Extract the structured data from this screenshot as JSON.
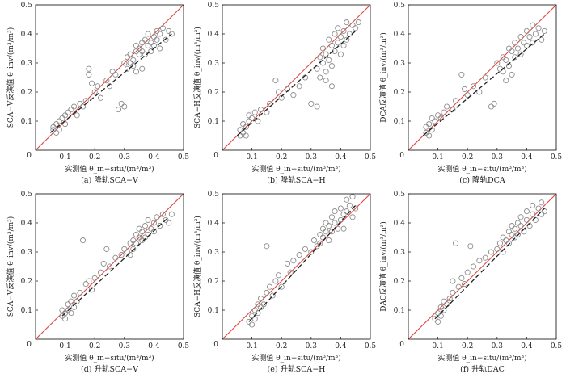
{
  "chart_data": [
    {
      "type": "scatter",
      "caption": "(a) 降轨SCA−V",
      "xlabel": "实测值 θ_in−situ/(m³/m³)",
      "ylabel": "SCA−V反演值 θ_inv/(m³/m³)",
      "xlim": [
        0,
        0.5
      ],
      "ylim": [
        0,
        0.5
      ],
      "ticks": [
        0.1,
        0.2,
        0.3,
        0.4,
        0.5
      ],
      "tick_labels": [
        "0.1",
        "0.2",
        "0.3",
        "0.4",
        "0.5"
      ],
      "origin_label": "0",
      "one_to_one": true,
      "fit": {
        "x": [
          0.05,
          0.46
        ],
        "y": [
          0.06,
          0.4
        ]
      },
      "points": [
        [
          0.06,
          0.07
        ],
        [
          0.06,
          0.08
        ],
        [
          0.07,
          0.06
        ],
        [
          0.07,
          0.09
        ],
        [
          0.08,
          0.07
        ],
        [
          0.08,
          0.1
        ],
        [
          0.09,
          0.11
        ],
        [
          0.1,
          0.12
        ],
        [
          0.1,
          0.09
        ],
        [
          0.11,
          0.13
        ],
        [
          0.12,
          0.14
        ],
        [
          0.13,
          0.15
        ],
        [
          0.14,
          0.12
        ],
        [
          0.15,
          0.16
        ],
        [
          0.16,
          0.15
        ],
        [
          0.17,
          0.17
        ],
        [
          0.18,
          0.28
        ],
        [
          0.18,
          0.26
        ],
        [
          0.19,
          0.23
        ],
        [
          0.2,
          0.2
        ],
        [
          0.21,
          0.22
        ],
        [
          0.22,
          0.18
        ],
        [
          0.24,
          0.24
        ],
        [
          0.25,
          0.22
        ],
        [
          0.26,
          0.27
        ],
        [
          0.27,
          0.26
        ],
        [
          0.28,
          0.14
        ],
        [
          0.29,
          0.16
        ],
        [
          0.3,
          0.15
        ],
        [
          0.3,
          0.3
        ],
        [
          0.31,
          0.28
        ],
        [
          0.31,
          0.32
        ],
        [
          0.32,
          0.3
        ],
        [
          0.32,
          0.33
        ],
        [
          0.33,
          0.31
        ],
        [
          0.33,
          0.29
        ],
        [
          0.34,
          0.34
        ],
        [
          0.34,
          0.36
        ],
        [
          0.35,
          0.33
        ],
        [
          0.35,
          0.35
        ],
        [
          0.36,
          0.37
        ],
        [
          0.36,
          0.34
        ],
        [
          0.37,
          0.38
        ],
        [
          0.37,
          0.33
        ],
        [
          0.38,
          0.36
        ],
        [
          0.38,
          0.4
        ],
        [
          0.39,
          0.37
        ],
        [
          0.39,
          0.34
        ],
        [
          0.4,
          0.39
        ],
        [
          0.4,
          0.36
        ],
        [
          0.41,
          0.41
        ],
        [
          0.41,
          0.38
        ],
        [
          0.42,
          0.4
        ],
        [
          0.42,
          0.35
        ],
        [
          0.43,
          0.42
        ],
        [
          0.44,
          0.38
        ],
        [
          0.45,
          0.41
        ],
        [
          0.46,
          0.4
        ],
        [
          0.36,
          0.28
        ],
        [
          0.34,
          0.27
        ]
      ]
    },
    {
      "type": "scatter",
      "caption": "(b) 降轨SCA−H",
      "xlabel": "实测值 θ_in−situ/(m³/m³)",
      "ylabel": "SCA−H反演值 θ_inv/(m³/m³)",
      "xlim": [
        0,
        0.5
      ],
      "ylim": [
        0,
        0.5
      ],
      "ticks": [
        0.1,
        0.2,
        0.3,
        0.4,
        0.5
      ],
      "tick_labels": [
        "0.1",
        "0.2",
        "0.3",
        "0.4",
        "0.5"
      ],
      "origin_label": "0",
      "one_to_one": true,
      "fit": {
        "x": [
          0.05,
          0.45
        ],
        "y": [
          0.05,
          0.41
        ]
      },
      "points": [
        [
          0.06,
          0.05
        ],
        [
          0.06,
          0.07
        ],
        [
          0.07,
          0.06
        ],
        [
          0.07,
          0.09
        ],
        [
          0.08,
          0.05
        ],
        [
          0.08,
          0.08
        ],
        [
          0.09,
          0.1
        ],
        [
          0.09,
          0.12
        ],
        [
          0.1,
          0.11
        ],
        [
          0.11,
          0.13
        ],
        [
          0.12,
          0.1
        ],
        [
          0.13,
          0.14
        ],
        [
          0.15,
          0.13
        ],
        [
          0.16,
          0.16
        ],
        [
          0.18,
          0.24
        ],
        [
          0.19,
          0.2
        ],
        [
          0.2,
          0.18
        ],
        [
          0.22,
          0.21
        ],
        [
          0.24,
          0.19
        ],
        [
          0.26,
          0.22
        ],
        [
          0.28,
          0.25
        ],
        [
          0.3,
          0.16
        ],
        [
          0.32,
          0.15
        ],
        [
          0.32,
          0.28
        ],
        [
          0.33,
          0.32
        ],
        [
          0.33,
          0.25
        ],
        [
          0.34,
          0.35
        ],
        [
          0.34,
          0.3
        ],
        [
          0.35,
          0.33
        ],
        [
          0.35,
          0.27
        ],
        [
          0.36,
          0.38
        ],
        [
          0.36,
          0.31
        ],
        [
          0.37,
          0.36
        ],
        [
          0.37,
          0.29
        ],
        [
          0.38,
          0.4
        ],
        [
          0.38,
          0.34
        ],
        [
          0.39,
          0.37
        ],
        [
          0.39,
          0.42
        ],
        [
          0.4,
          0.39
        ],
        [
          0.4,
          0.33
        ],
        [
          0.41,
          0.41
        ],
        [
          0.41,
          0.36
        ],
        [
          0.42,
          0.44
        ],
        [
          0.42,
          0.38
        ],
        [
          0.43,
          0.4
        ],
        [
          0.44,
          0.43
        ],
        [
          0.45,
          0.42
        ],
        [
          0.46,
          0.44
        ],
        [
          0.37,
          0.22
        ],
        [
          0.35,
          0.24
        ]
      ]
    },
    {
      "type": "scatter",
      "caption": "(c) 降轨DCA",
      "xlabel": "实测值 θ_in−situ/(m³/m³)",
      "ylabel": "DCA反演值 θ_inv/(m³/m³)",
      "xlim": [
        0,
        0.5
      ],
      "ylim": [
        0,
        0.5
      ],
      "ticks": [
        0.1,
        0.2,
        0.3,
        0.4,
        0.5
      ],
      "tick_labels": [
        "0.1",
        "0.2",
        "0.3",
        "0.4",
        "0.5"
      ],
      "origin_label": "0",
      "one_to_one": true,
      "fit": {
        "x": [
          0.05,
          0.46
        ],
        "y": [
          0.05,
          0.4
        ]
      },
      "points": [
        [
          0.06,
          0.06
        ],
        [
          0.06,
          0.08
        ],
        [
          0.07,
          0.05
        ],
        [
          0.07,
          0.09
        ],
        [
          0.08,
          0.07
        ],
        [
          0.08,
          0.11
        ],
        [
          0.09,
          0.1
        ],
        [
          0.1,
          0.12
        ],
        [
          0.11,
          0.11
        ],
        [
          0.12,
          0.13
        ],
        [
          0.13,
          0.15
        ],
        [
          0.15,
          0.14
        ],
        [
          0.16,
          0.17
        ],
        [
          0.18,
          0.26
        ],
        [
          0.19,
          0.21
        ],
        [
          0.2,
          0.19
        ],
        [
          0.22,
          0.22
        ],
        [
          0.24,
          0.2
        ],
        [
          0.26,
          0.25
        ],
        [
          0.28,
          0.15
        ],
        [
          0.29,
          0.16
        ],
        [
          0.3,
          0.3
        ],
        [
          0.31,
          0.28
        ],
        [
          0.32,
          0.32
        ],
        [
          0.32,
          0.27
        ],
        [
          0.33,
          0.31
        ],
        [
          0.34,
          0.35
        ],
        [
          0.34,
          0.29
        ],
        [
          0.35,
          0.34
        ],
        [
          0.36,
          0.37
        ],
        [
          0.36,
          0.32
        ],
        [
          0.37,
          0.35
        ],
        [
          0.38,
          0.39
        ],
        [
          0.38,
          0.33
        ],
        [
          0.39,
          0.37
        ],
        [
          0.4,
          0.41
        ],
        [
          0.4,
          0.36
        ],
        [
          0.41,
          0.39
        ],
        [
          0.42,
          0.43
        ],
        [
          0.42,
          0.37
        ],
        [
          0.43,
          0.4
        ],
        [
          0.44,
          0.42
        ],
        [
          0.45,
          0.38
        ],
        [
          0.46,
          0.41
        ],
        [
          0.35,
          0.26
        ],
        [
          0.33,
          0.24
        ]
      ]
    },
    {
      "type": "scatter",
      "caption": "(d) 升轨SCA−V",
      "xlabel": "实测值 θ_in−situ/(m³/m³)",
      "ylabel": "SCA−V反演值 θ_inv/(m³/m³)",
      "xlim": [
        0,
        0.5
      ],
      "ylim": [
        0,
        0.5
      ],
      "ticks": [
        0.1,
        0.2,
        0.3,
        0.4,
        0.5
      ],
      "tick_labels": [
        "0.1",
        "0.2",
        "0.3",
        "0.4",
        "0.5"
      ],
      "origin_label": "0",
      "one_to_one": true,
      "fit": {
        "x": [
          0.09,
          0.45
        ],
        "y": [
          0.08,
          0.42
        ]
      },
      "points": [
        [
          0.09,
          0.08
        ],
        [
          0.09,
          0.1
        ],
        [
          0.1,
          0.07
        ],
        [
          0.1,
          0.09
        ],
        [
          0.11,
          0.1
        ],
        [
          0.11,
          0.12
        ],
        [
          0.12,
          0.09
        ],
        [
          0.12,
          0.13
        ],
        [
          0.13,
          0.11
        ],
        [
          0.13,
          0.15
        ],
        [
          0.14,
          0.13
        ],
        [
          0.15,
          0.16
        ],
        [
          0.16,
          0.34
        ],
        [
          0.17,
          0.19
        ],
        [
          0.18,
          0.2
        ],
        [
          0.19,
          0.17
        ],
        [
          0.2,
          0.21
        ],
        [
          0.22,
          0.23
        ],
        [
          0.23,
          0.26
        ],
        [
          0.24,
          0.31
        ],
        [
          0.25,
          0.25
        ],
        [
          0.27,
          0.28
        ],
        [
          0.29,
          0.29
        ],
        [
          0.3,
          0.31
        ],
        [
          0.31,
          0.3
        ],
        [
          0.32,
          0.33
        ],
        [
          0.32,
          0.29
        ],
        [
          0.33,
          0.34
        ],
        [
          0.33,
          0.31
        ],
        [
          0.34,
          0.36
        ],
        [
          0.34,
          0.33
        ],
        [
          0.35,
          0.35
        ],
        [
          0.35,
          0.38
        ],
        [
          0.36,
          0.34
        ],
        [
          0.36,
          0.37
        ],
        [
          0.37,
          0.39
        ],
        [
          0.37,
          0.35
        ],
        [
          0.38,
          0.36
        ],
        [
          0.38,
          0.41
        ],
        [
          0.39,
          0.38
        ],
        [
          0.4,
          0.4
        ],
        [
          0.4,
          0.37
        ],
        [
          0.41,
          0.42
        ],
        [
          0.42,
          0.39
        ],
        [
          0.43,
          0.43
        ],
        [
          0.44,
          0.41
        ],
        [
          0.45,
          0.4
        ],
        [
          0.46,
          0.43
        ]
      ]
    },
    {
      "type": "scatter",
      "caption": "(e) 升轨SCA−H",
      "xlabel": "实测值 θ_in−situ/(m³/m³)",
      "ylabel": "SCA−H反演值 θ_inv/(m³/m³)",
      "xlim": [
        0,
        0.5
      ],
      "ylim": [
        0,
        0.5
      ],
      "ticks": [
        0.1,
        0.2,
        0.3,
        0.4,
        0.5
      ],
      "tick_labels": [
        "0.1",
        "0.2",
        "0.3",
        "0.4",
        "0.5"
      ],
      "origin_label": "0",
      "one_to_one": true,
      "fit": {
        "x": [
          0.09,
          0.45
        ],
        "y": [
          0.06,
          0.46
        ]
      },
      "points": [
        [
          0.09,
          0.06
        ],
        [
          0.1,
          0.05
        ],
        [
          0.1,
          0.08
        ],
        [
          0.11,
          0.07
        ],
        [
          0.11,
          0.1
        ],
        [
          0.12,
          0.09
        ],
        [
          0.12,
          0.12
        ],
        [
          0.13,
          0.11
        ],
        [
          0.13,
          0.14
        ],
        [
          0.14,
          0.12
        ],
        [
          0.15,
          0.16
        ],
        [
          0.15,
          0.32
        ],
        [
          0.16,
          0.18
        ],
        [
          0.17,
          0.15
        ],
        [
          0.18,
          0.2
        ],
        [
          0.19,
          0.22
        ],
        [
          0.2,
          0.18
        ],
        [
          0.22,
          0.26
        ],
        [
          0.23,
          0.23
        ],
        [
          0.24,
          0.27
        ],
        [
          0.26,
          0.29
        ],
        [
          0.28,
          0.31
        ],
        [
          0.3,
          0.3
        ],
        [
          0.31,
          0.34
        ],
        [
          0.32,
          0.32
        ],
        [
          0.33,
          0.36
        ],
        [
          0.33,
          0.33
        ],
        [
          0.34,
          0.38
        ],
        [
          0.34,
          0.35
        ],
        [
          0.35,
          0.37
        ],
        [
          0.35,
          0.4
        ],
        [
          0.36,
          0.34
        ],
        [
          0.36,
          0.39
        ],
        [
          0.37,
          0.42
        ],
        [
          0.37,
          0.37
        ],
        [
          0.38,
          0.4
        ],
        [
          0.38,
          0.44
        ],
        [
          0.39,
          0.38
        ],
        [
          0.4,
          0.45
        ],
        [
          0.4,
          0.41
        ],
        [
          0.41,
          0.43
        ],
        [
          0.41,
          0.38
        ],
        [
          0.42,
          0.48
        ],
        [
          0.42,
          0.44
        ],
        [
          0.43,
          0.46
        ],
        [
          0.44,
          0.42
        ],
        [
          0.44,
          0.49
        ],
        [
          0.45,
          0.45
        ]
      ]
    },
    {
      "type": "scatter",
      "caption": "(f) 升轨DAC",
      "xlabel": "实测值 θ_in−situ/(m³/m³)",
      "ylabel": "DAC反演值 θ_inv/(m³/m³)",
      "xlim": [
        0,
        0.5
      ],
      "ylim": [
        0,
        0.5
      ],
      "ticks": [
        0.1,
        0.2,
        0.3,
        0.4,
        0.5
      ],
      "tick_labels": [
        "0.1",
        "0.2",
        "0.3",
        "0.4",
        "0.5"
      ],
      "origin_label": "0",
      "one_to_one": true,
      "fit": {
        "x": [
          0.09,
          0.46
        ],
        "y": [
          0.07,
          0.45
        ]
      },
      "points": [
        [
          0.09,
          0.07
        ],
        [
          0.1,
          0.06
        ],
        [
          0.1,
          0.09
        ],
        [
          0.11,
          0.08
        ],
        [
          0.11,
          0.11
        ],
        [
          0.12,
          0.1
        ],
        [
          0.12,
          0.13
        ],
        [
          0.13,
          0.12
        ],
        [
          0.14,
          0.14
        ],
        [
          0.15,
          0.16
        ],
        [
          0.15,
          0.2
        ],
        [
          0.16,
          0.33
        ],
        [
          0.17,
          0.18
        ],
        [
          0.18,
          0.21
        ],
        [
          0.19,
          0.19
        ],
        [
          0.2,
          0.23
        ],
        [
          0.21,
          0.32
        ],
        [
          0.22,
          0.25
        ],
        [
          0.24,
          0.27
        ],
        [
          0.26,
          0.28
        ],
        [
          0.28,
          0.3
        ],
        [
          0.3,
          0.31
        ],
        [
          0.31,
          0.33
        ],
        [
          0.32,
          0.3
        ],
        [
          0.32,
          0.35
        ],
        [
          0.33,
          0.34
        ],
        [
          0.34,
          0.37
        ],
        [
          0.34,
          0.33
        ],
        [
          0.35,
          0.36
        ],
        [
          0.35,
          0.39
        ],
        [
          0.36,
          0.35
        ],
        [
          0.36,
          0.38
        ],
        [
          0.37,
          0.4
        ],
        [
          0.37,
          0.36
        ],
        [
          0.38,
          0.39
        ],
        [
          0.38,
          0.42
        ],
        [
          0.39,
          0.37
        ],
        [
          0.4,
          0.41
        ],
        [
          0.4,
          0.44
        ],
        [
          0.41,
          0.39
        ],
        [
          0.42,
          0.43
        ],
        [
          0.42,
          0.46
        ],
        [
          0.43,
          0.41
        ],
        [
          0.44,
          0.45
        ],
        [
          0.45,
          0.43
        ],
        [
          0.45,
          0.47
        ],
        [
          0.46,
          0.44
        ]
      ]
    }
  ],
  "style": {
    "one_to_one_color": "#e0443c",
    "fit_color": "#222222",
    "marker_color": "#8c8c8c"
  }
}
